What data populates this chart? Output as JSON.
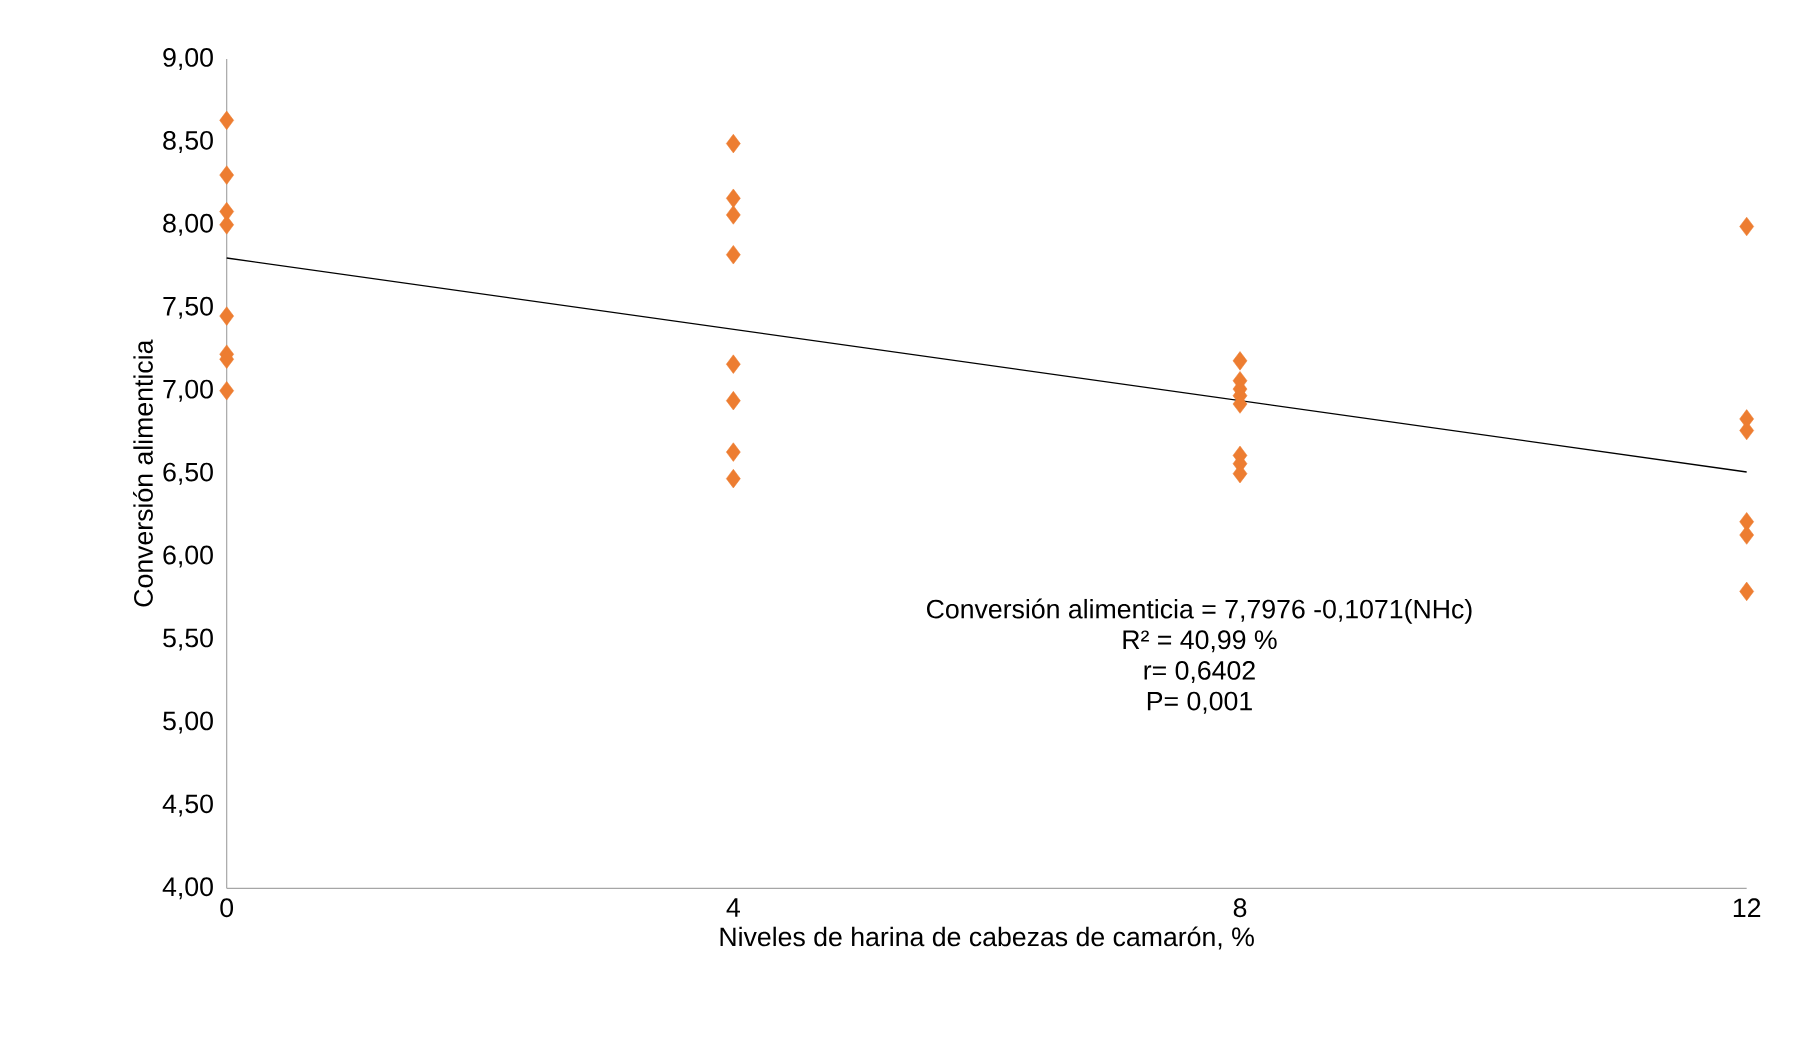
{
  "chart_data": {
    "type": "scatter",
    "xlabel": "Niveles de harina de cabezas de camarón, %",
    "ylabel": "Conversión alimenticia",
    "xlim": [
      0,
      12
    ],
    "xticks": [
      0,
      4,
      8,
      12
    ],
    "ylim": [
      4,
      9
    ],
    "yticks": [
      {
        "value": 4,
        "label": "4,00"
      },
      {
        "value": 4.5,
        "label": "4,50"
      },
      {
        "value": 5,
        "label": "5,00"
      },
      {
        "value": 5.5,
        "label": "5,50"
      },
      {
        "value": 6,
        "label": "6,00"
      },
      {
        "value": 6.5,
        "label": "6,50"
      },
      {
        "value": 7,
        "label": "7,00"
      },
      {
        "value": 7.5,
        "label": "7,50"
      },
      {
        "value": 8,
        "label": "8,00"
      },
      {
        "value": 8.5,
        "label": "8,50"
      },
      {
        "value": 9,
        "label": "9,00"
      }
    ],
    "grid": false,
    "series": [
      {
        "color": "#ed7d31",
        "marker": "diamond",
        "x": [
          0,
          0,
          0,
          0,
          0,
          0,
          0,
          0,
          4,
          4,
          4,
          4,
          4,
          4,
          4,
          4,
          8,
          8,
          8,
          8,
          8,
          8,
          8,
          8,
          12,
          12,
          12,
          12,
          12,
          12
        ],
        "values": [
          8.63,
          8.3,
          8.08,
          8.0,
          7.45,
          7.22,
          7.19,
          7.0,
          8.49,
          8.16,
          8.06,
          7.82,
          7.16,
          6.94,
          6.63,
          6.47,
          7.18,
          7.06,
          7.01,
          6.97,
          6.92,
          6.61,
          6.56,
          6.5,
          7.99,
          6.83,
          6.76,
          6.21,
          6.13,
          5.79
        ]
      },
      {
        "type": "line",
        "color": "#000000",
        "marker": "none",
        "line_style": "solid",
        "x": [
          0,
          12
        ],
        "values": [
          7.8,
          6.51
        ]
      }
    ],
    "annotations": [
      "Conversión alimenticia = 7,7976 -0,1071(NHc)",
      "R² = 40,99 %",
      "r= 0,6402",
      "P= 0,001"
    ]
  }
}
